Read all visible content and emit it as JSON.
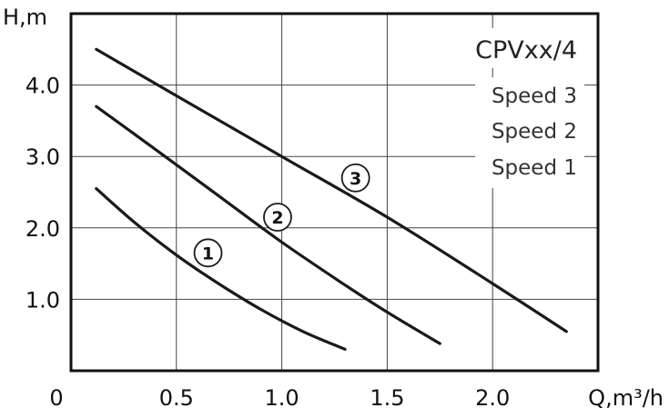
{
  "chart_data": {
    "type": "line",
    "title": "CPVxx/4",
    "xlabel": "Q,m³/h",
    "ylabel": "H,m",
    "xlim": [
      0,
      2.5
    ],
    "ylim": [
      0,
      5.0
    ],
    "origin_label": "0",
    "x_ticks": [
      "0.5",
      "1.0",
      "1.5",
      "2.0"
    ],
    "y_ticks": [
      "1.0",
      "2.0",
      "3.0",
      "4.0"
    ],
    "grid": true,
    "legend_position": "top-right",
    "legend": [
      "Speed 3",
      "Speed 2",
      "Speed 1"
    ],
    "series": [
      {
        "marker": "1",
        "x": [
          0.12,
          0.3,
          0.5,
          0.7,
          0.9,
          1.1,
          1.3
        ],
        "y": [
          2.55,
          2.08,
          1.62,
          1.22,
          0.86,
          0.55,
          0.3
        ],
        "marker_at": [
          0.65,
          1.65
        ]
      },
      {
        "marker": "2",
        "x": [
          0.12,
          0.4,
          0.7,
          1.0,
          1.3,
          1.5,
          1.75
        ],
        "y": [
          3.7,
          3.1,
          2.45,
          1.8,
          1.2,
          0.82,
          0.38
        ],
        "marker_at": [
          0.98,
          2.15
        ]
      },
      {
        "marker": "3",
        "x": [
          0.12,
          0.5,
          1.0,
          1.5,
          2.0,
          2.35
        ],
        "y": [
          4.5,
          3.85,
          3.0,
          2.15,
          1.22,
          0.55
        ],
        "marker_at": [
          1.35,
          2.7
        ]
      }
    ]
  }
}
